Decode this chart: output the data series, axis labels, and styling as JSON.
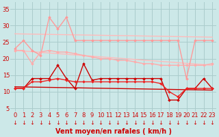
{
  "background_color": "#cce8e8",
  "grid_color": "#aacccc",
  "xlabel": "Vent moyen/en rafales ( km/h )",
  "x_ticks": [
    0,
    1,
    2,
    3,
    4,
    5,
    6,
    7,
    8,
    9,
    10,
    11,
    12,
    13,
    14,
    15,
    16,
    17,
    18,
    19,
    20,
    21,
    22,
    23
  ],
  "y_ticks": [
    5,
    10,
    15,
    20,
    25,
    30,
    35
  ],
  "ylim": [
    4,
    37
  ],
  "xlim": [
    -0.5,
    23.5
  ],
  "series": [
    {
      "label": "upper_envelope",
      "x": [
        0,
        1,
        2,
        3,
        4,
        5,
        6,
        7,
        8,
        9,
        10,
        11,
        12,
        13,
        14,
        15,
        16,
        17,
        18,
        19,
        20,
        21,
        22,
        23
      ],
      "y": [
        23.0,
        25.5,
        22.5,
        21.0,
        32.5,
        29.0,
        32.5,
        25.5,
        25.5,
        25.5,
        25.5,
        25.5,
        25.5,
        25.5,
        25.5,
        25.5,
        25.5,
        25.5,
        25.5,
        25.5,
        14.0,
        25.5,
        25.5,
        25.5
      ],
      "color": "#ff9999",
      "linewidth": 1.0,
      "marker": "D",
      "markersize": 2.0,
      "zorder": 3
    },
    {
      "label": "upper_mean_line",
      "x": [
        0,
        1,
        2,
        3,
        4,
        5,
        6,
        7,
        8,
        9,
        10,
        11,
        12,
        13,
        14,
        15,
        16,
        17,
        18,
        19,
        20,
        21,
        22,
        23
      ],
      "y": [
        22.5,
        22.5,
        18.5,
        22.0,
        22.5,
        22.0,
        22.0,
        21.5,
        21.0,
        20.5,
        20.0,
        20.0,
        19.5,
        19.5,
        19.0,
        18.5,
        18.5,
        18.0,
        18.0,
        18.0,
        18.0,
        18.0,
        18.0,
        18.5
      ],
      "color": "#ffaaaa",
      "linewidth": 1.0,
      "marker": "D",
      "markersize": 2.0,
      "zorder": 3
    },
    {
      "label": "trend_upper_top",
      "x": [
        0,
        23
      ],
      "y": [
        27.5,
        26.5
      ],
      "color": "#ffbbbb",
      "linewidth": 1.0,
      "marker": null,
      "markersize": 0,
      "zorder": 2
    },
    {
      "label": "trend_upper_bot",
      "x": [
        0,
        23
      ],
      "y": [
        22.5,
        18.0
      ],
      "color": "#ffbbbb",
      "linewidth": 1.0,
      "marker": null,
      "markersize": 0,
      "zorder": 2
    },
    {
      "label": "wind_gust",
      "x": [
        0,
        1,
        2,
        3,
        4,
        5,
        6,
        7,
        8,
        9,
        10,
        11,
        12,
        13,
        14,
        15,
        16,
        17,
        18,
        19,
        20,
        21,
        22,
        23
      ],
      "y": [
        11.0,
        11.0,
        14.0,
        14.0,
        14.0,
        18.0,
        14.0,
        11.0,
        18.5,
        13.5,
        14.0,
        14.0,
        14.0,
        14.0,
        14.0,
        14.0,
        14.0,
        14.0,
        7.5,
        7.5,
        11.0,
        11.0,
        14.0,
        11.0
      ],
      "color": "#cc0000",
      "linewidth": 1.0,
      "marker": "D",
      "markersize": 2.0,
      "zorder": 4
    },
    {
      "label": "wind_mean",
      "x": [
        0,
        1,
        2,
        3,
        4,
        5,
        6,
        7,
        8,
        9,
        10,
        11,
        12,
        13,
        14,
        15,
        16,
        17,
        18,
        19,
        20,
        21,
        22,
        23
      ],
      "y": [
        11.0,
        11.0,
        13.0,
        13.0,
        13.5,
        14.0,
        13.5,
        13.0,
        13.0,
        13.0,
        13.0,
        13.0,
        13.0,
        13.0,
        13.0,
        13.0,
        13.0,
        12.5,
        10.0,
        8.5,
        11.0,
        11.0,
        11.0,
        11.0
      ],
      "color": "#ee2222",
      "linewidth": 1.0,
      "marker": "D",
      "markersize": 2.0,
      "zorder": 4
    },
    {
      "label": "trend_lower",
      "x": [
        0,
        23
      ],
      "y": [
        11.5,
        10.5
      ],
      "color": "#cc0000",
      "linewidth": 1.0,
      "marker": null,
      "markersize": 0,
      "zorder": 2
    }
  ],
  "tick_fontsize": 6,
  "label_fontsize": 7,
  "tick_color": "#cc0000",
  "label_color": "#cc0000"
}
